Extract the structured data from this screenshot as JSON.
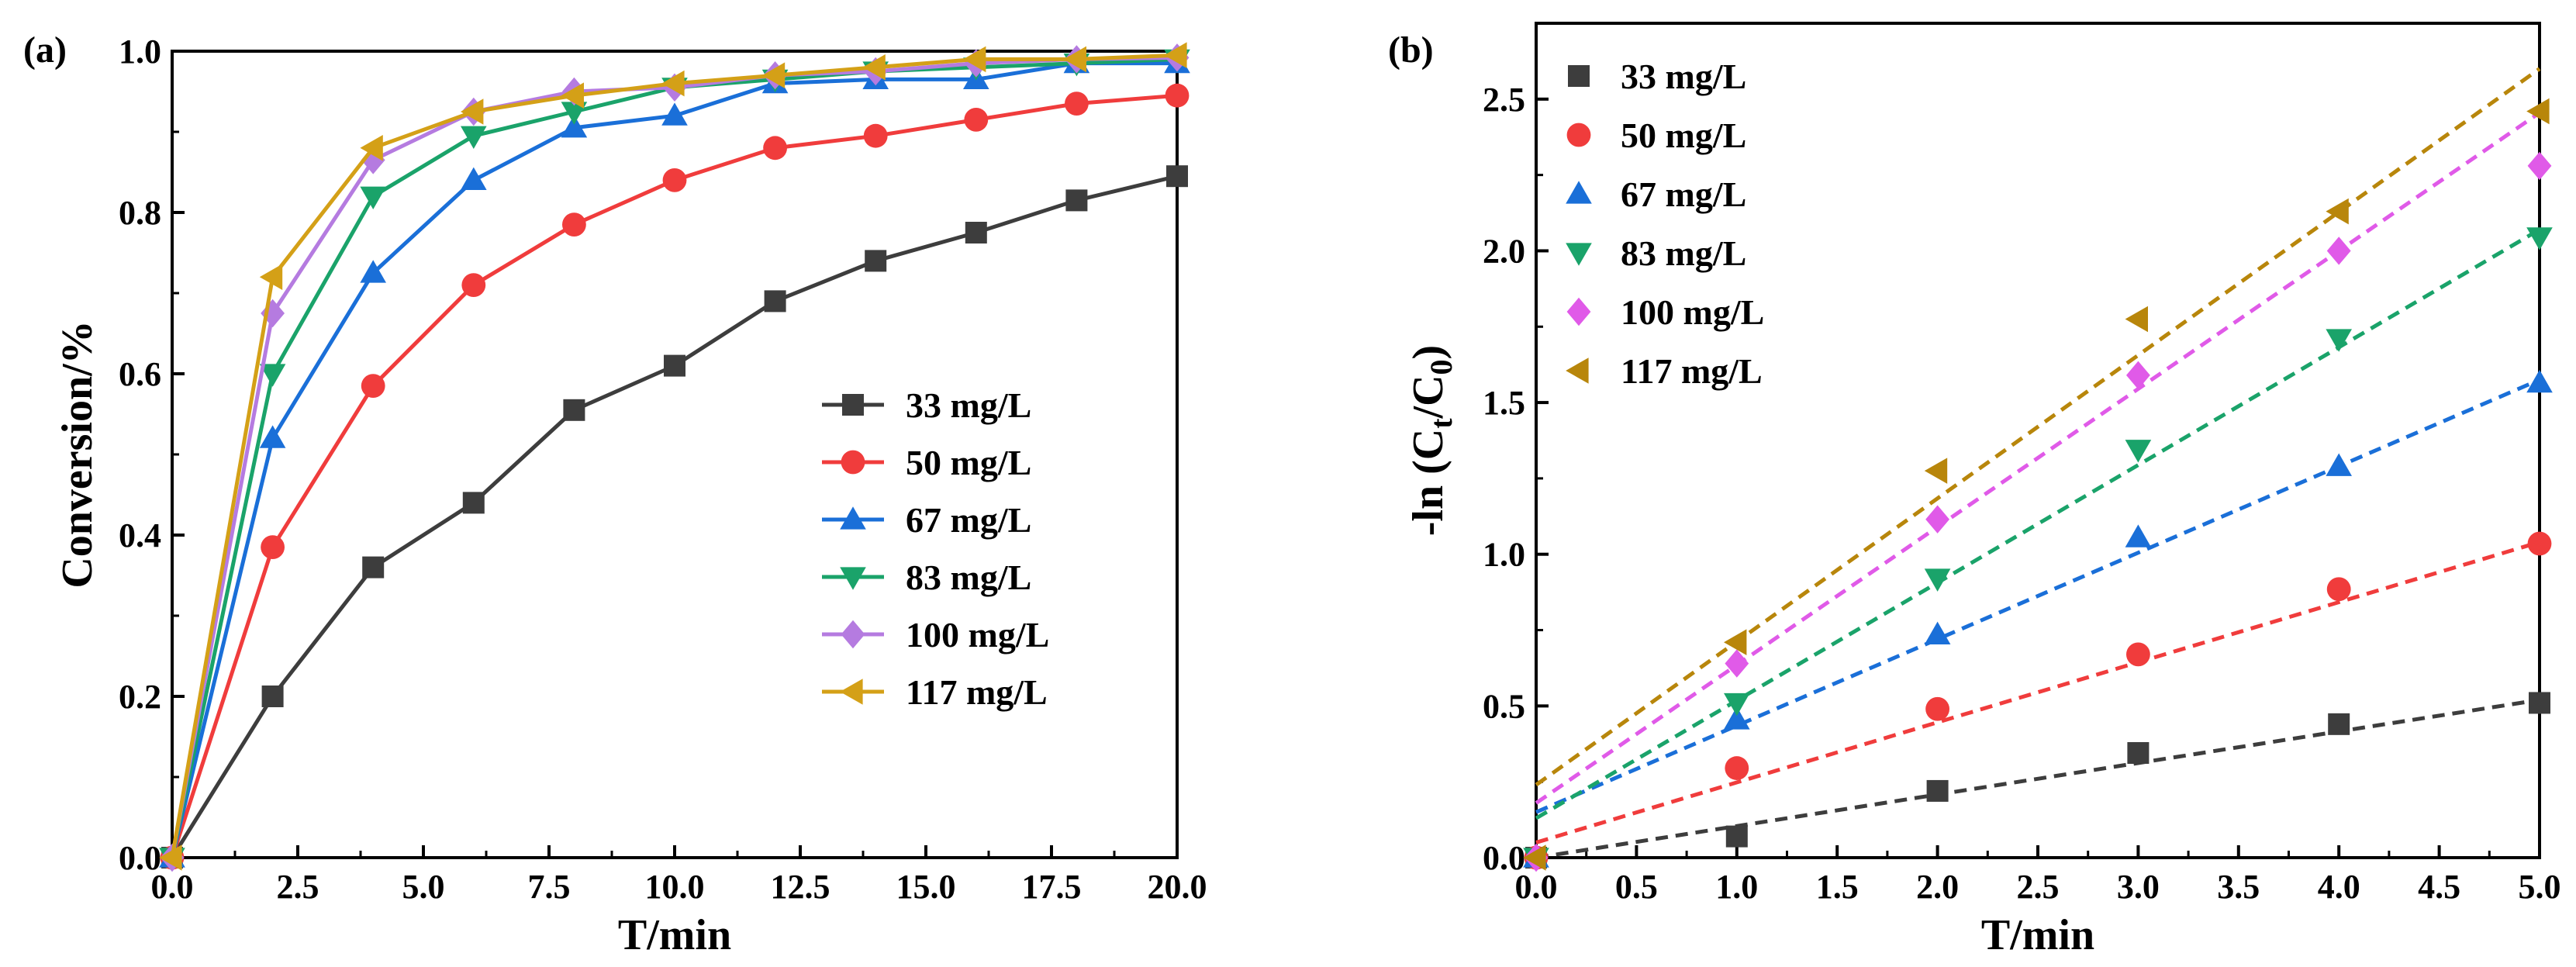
{
  "chart_data": [
    {
      "panel_label": "(a)",
      "type": "line",
      "xlabel": "T/min",
      "ylabel": "Conversion/%",
      "xlim": [
        0,
        20
      ],
      "ylim": [
        0,
        1.0
      ],
      "xticks": [
        "0.0",
        "2.5",
        "5.0",
        "7.5",
        "10.0",
        "12.5",
        "15.0",
        "17.5",
        "20.0"
      ],
      "yticks": [
        "0.0",
        "0.2",
        "0.4",
        "0.6",
        "0.8",
        "1.0"
      ],
      "legend_position": "center-right",
      "x": [
        0,
        2,
        4,
        6,
        8,
        10,
        12,
        14,
        16,
        18,
        20
      ],
      "series": [
        {
          "name": "33 mg/L",
          "color": "#3d3d3d",
          "marker": "square",
          "values": [
            0,
            0.2,
            0.36,
            0.44,
            0.555,
            0.61,
            0.69,
            0.74,
            0.775,
            0.815,
            0.845
          ]
        },
        {
          "name": "50 mg/L",
          "color": "#f03c3c",
          "marker": "circle",
          "values": [
            0,
            0.385,
            0.585,
            0.71,
            0.785,
            0.84,
            0.88,
            0.895,
            0.915,
            0.935,
            0.945
          ]
        },
        {
          "name": "67 mg/L",
          "color": "#1a6fd8",
          "marker": "triangle-up",
          "values": [
            0,
            0.52,
            0.725,
            0.84,
            0.905,
            0.92,
            0.96,
            0.965,
            0.965,
            0.985,
            0.985
          ]
        },
        {
          "name": "83 mg/L",
          "color": "#1aa36a",
          "marker": "triangle-down",
          "values": [
            0,
            0.6,
            0.82,
            0.895,
            0.925,
            0.955,
            0.965,
            0.975,
            0.98,
            0.985,
            0.99
          ]
        },
        {
          "name": "100 mg/L",
          "color": "#b57be0",
          "marker": "diamond",
          "values": [
            0,
            0.675,
            0.865,
            0.925,
            0.95,
            0.955,
            0.97,
            0.975,
            0.985,
            0.99,
            0.992
          ]
        },
        {
          "name": "117 mg/L",
          "color": "#d4a017",
          "marker": "triangle-left",
          "values": [
            0,
            0.72,
            0.88,
            0.925,
            0.945,
            0.96,
            0.97,
            0.98,
            0.99,
            0.99,
            0.995
          ]
        }
      ]
    },
    {
      "panel_label": "(b)",
      "type": "scatter",
      "xlabel": "T/min",
      "ylabel_prefix": "-ln (C",
      "ylabel_sub1": "t",
      "ylabel_mid": "/C",
      "ylabel_sub2": "0",
      "ylabel_suffix": ")",
      "xlim": [
        0,
        5
      ],
      "ylim": [
        0,
        2.75
      ],
      "xticks": [
        "0.0",
        "0.5",
        "1.0",
        "1.5",
        "2.0",
        "2.5",
        "3.0",
        "3.5",
        "4.0",
        "4.5",
        "5.0"
      ],
      "yticks": [
        "0.0",
        "0.5",
        "1.0",
        "1.5",
        "2.0",
        "2.5"
      ],
      "legend_position": "top-left",
      "x": [
        0,
        1,
        2,
        3,
        4,
        5
      ],
      "series": [
        {
          "name": "33 mg/L",
          "color": "#3d3d3d",
          "marker": "square",
          "values": [
            0,
            0.07,
            0.22,
            0.345,
            0.44,
            0.51
          ],
          "fit": [
            -0.02,
            0.108
          ]
        },
        {
          "name": "50 mg/L",
          "color": "#f03c3c",
          "marker": "circle",
          "values": [
            0,
            0.295,
            0.49,
            0.67,
            0.885,
            1.035
          ],
          "fit": [
            0.05,
            0.198
          ]
        },
        {
          "name": "67 mg/L",
          "color": "#1a6fd8",
          "marker": "triangle-up",
          "values": [
            0,
            0.455,
            0.735,
            1.055,
            1.29,
            1.565
          ],
          "fit": [
            0.15,
            0.285
          ]
        },
        {
          "name": "83 mg/L",
          "color": "#1aa36a",
          "marker": "triangle-down",
          "values": [
            0,
            0.51,
            0.92,
            1.345,
            1.71,
            2.045
          ],
          "fit": [
            0.13,
            0.388
          ]
        },
        {
          "name": "100 mg/L",
          "color": "#e05ae8",
          "marker": "diamond",
          "values": [
            0,
            0.64,
            1.115,
            1.59,
            2.0,
            2.28
          ],
          "fit": [
            0.18,
            0.455
          ]
        },
        {
          "name": "117 mg/L",
          "color": "#b8860b",
          "marker": "triangle-left",
          "values": [
            0,
            0.71,
            1.275,
            1.775,
            2.13,
            2.46
          ],
          "fit": [
            0.24,
            0.472
          ]
        }
      ]
    }
  ]
}
